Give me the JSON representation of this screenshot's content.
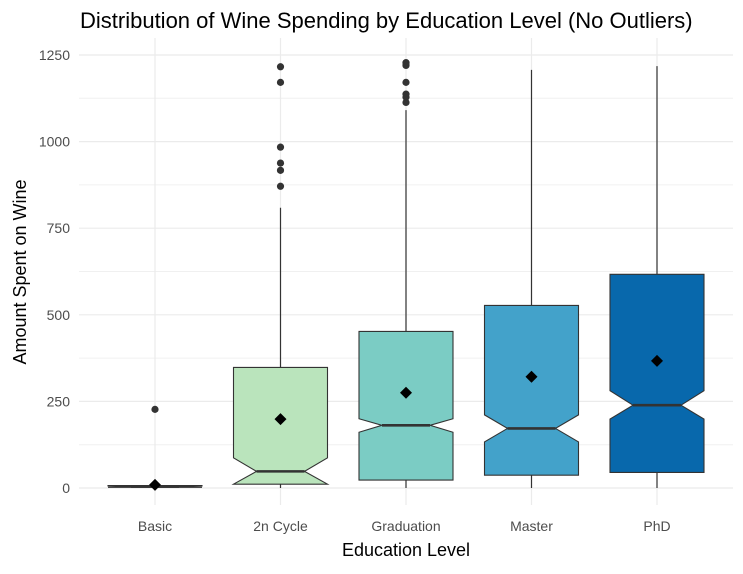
{
  "chart_data": {
    "type": "box",
    "title": "Distribution of Wine Spending by Education Level (No Outliers)",
    "xlabel": "Education Level",
    "ylabel": "Amount Spent on Wine",
    "ylim": [
      -50,
      1300
    ],
    "yticks": [
      0,
      250,
      500,
      750,
      1000,
      1250
    ],
    "grid": true,
    "categories": [
      "Basic",
      "2n Cycle",
      "Graduation",
      "Master",
      "PhD"
    ],
    "colors": [
      "#f0f9e8",
      "#bae4bc",
      "#7bccc4",
      "#43a2ca",
      "#0868ac"
    ],
    "boxes": [
      {
        "q1": 2,
        "median": 4,
        "q3": 7,
        "notch_low": 2,
        "notch_high": 6,
        "whisker_low": 0,
        "whisker_high": 15,
        "mean": 9,
        "outliers": [
          227
        ]
      },
      {
        "q1": 11,
        "median": 48,
        "q3": 348,
        "notch_low": 10,
        "notch_high": 87,
        "whisker_low": 0,
        "whisker_high": 809,
        "mean": 199,
        "outliers": [
          871,
          917,
          938,
          984,
          1171,
          1216
        ]
      },
      {
        "q1": 23,
        "median": 181,
        "q3": 452,
        "notch_low": 161,
        "notch_high": 200,
        "whisker_low": 0,
        "whisker_high": 1091,
        "mean": 275,
        "outliers": [
          1113,
          1128,
          1137,
          1171,
          1220,
          1224,
          1228
        ]
      },
      {
        "q1": 37,
        "median": 172,
        "q3": 527,
        "notch_low": 133,
        "notch_high": 211,
        "whisker_low": 0,
        "whisker_high": 1207,
        "mean": 321,
        "outliers": []
      },
      {
        "q1": 45,
        "median": 239,
        "q3": 617,
        "notch_low": 199,
        "notch_high": 281,
        "whisker_low": 0,
        "whisker_high": 1218,
        "mean": 367,
        "outliers": []
      }
    ]
  }
}
